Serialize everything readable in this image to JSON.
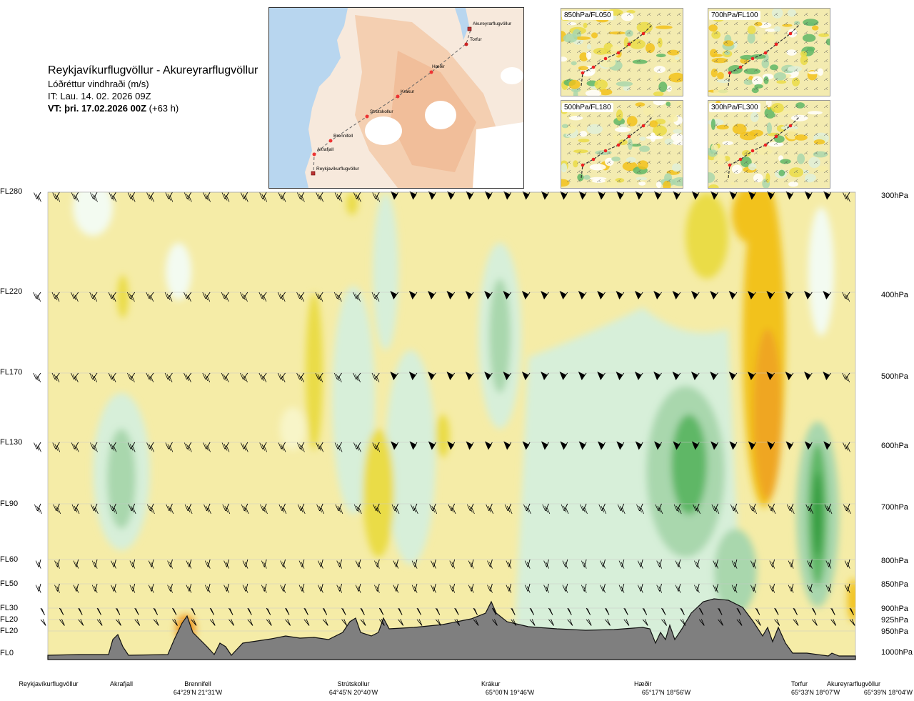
{
  "header": {
    "title": "Reykjavíkurflugvöllur - Akureyrarflugvöllur",
    "subtitle": "Lóðréttur vindhraði (m/s)",
    "issue_time": "IT: Lau. 14. 02. 2026 09Z",
    "valid_time": "VT: þri. 17.02.2026 00Z",
    "lead_time": "(+63 h)"
  },
  "route_map": {
    "waypoints": [
      {
        "name": "Akureyrarflugvöllur"
      },
      {
        "name": "Torfur"
      },
      {
        "name": "Hæðir"
      },
      {
        "name": "Krákur"
      },
      {
        "name": "Strútskollur"
      },
      {
        "name": "Brennifell"
      },
      {
        "name": "Akrafjall"
      },
      {
        "name": "Reykjavíkurflugvöllur"
      }
    ]
  },
  "mini_maps": [
    {
      "label": "850hPa/FL050"
    },
    {
      "label": "700hPa/FL100"
    },
    {
      "label": "500hPa/FL180"
    },
    {
      "label": "300hPa/FL300"
    }
  ],
  "levels": [
    {
      "fl": "FL280",
      "hpa": "300hPa"
    },
    {
      "fl": "FL220",
      "hpa": "400hPa"
    },
    {
      "fl": "FL170",
      "hpa": "500hPa"
    },
    {
      "fl": "FL130",
      "hpa": "600hPa"
    },
    {
      "fl": "FL90",
      "hpa": "700hPa"
    },
    {
      "fl": "FL60",
      "hpa": "800hPa"
    },
    {
      "fl": "FL50",
      "hpa": "850hPa"
    },
    {
      "fl": "FL30",
      "hpa": "900hPa"
    },
    {
      "fl": "FL20",
      "hpa": "925hPa"
    },
    {
      "fl": "FL20",
      "hpa": "950hPa"
    },
    {
      "fl": "FL0",
      "hpa": "1000hPa"
    }
  ],
  "locations": [
    {
      "name": "Reykjavíkurflugvöllur",
      "coord": ""
    },
    {
      "name": "Akrafjall",
      "coord": ""
    },
    {
      "name": "Brennifell",
      "coord": "64°29'N 21°31'W"
    },
    {
      "name": "Strútskollur",
      "coord": "64°45'N 20°40'W"
    },
    {
      "name": "Krákur",
      "coord": "65°00'N 19°46'W"
    },
    {
      "name": "Hæðir",
      "coord": "65°17'N 18°56'W"
    },
    {
      "name": "Torfur",
      "coord": "65°33'N 18°07'W"
    },
    {
      "name": "Akureyrarflugvöllur",
      "coord": "65°39'N 18°04'W"
    }
  ],
  "chart_data": {
    "type": "heatmap",
    "title": "Lóðréttur vindhraði (m/s)",
    "x_axis": [
      "Reykjavíkurflugvöllur",
      "Akrafjall",
      "Brennifell",
      "Strútskollur",
      "Krákur",
      "Hæðir",
      "Torfur",
      "Akureyrarflugvöllur"
    ],
    "y_axis_left": [
      "FL280",
      "FL220",
      "FL170",
      "FL130",
      "FL90",
      "FL60",
      "FL50",
      "FL30",
      "FL20",
      "FL20",
      "FL0"
    ],
    "y_axis_right": [
      "300hPa",
      "400hPa",
      "500hPa",
      "600hPa",
      "700hPa",
      "800hPa",
      "850hPa",
      "900hPa",
      "925hPa",
      "950hPa",
      "1000hPa"
    ],
    "colors": {
      "background": "#f5eca7",
      "light_green": "#d7efd9",
      "mid_green": "#a9d7ad",
      "dark_green": "#5fb766",
      "very_dark_green": "#2e9a3a",
      "pale": "#f3fbf1",
      "light_yellow": "#f8f5c8",
      "yellow": "#eadc46",
      "orange_yellow": "#f2c21b",
      "orange": "#ee9a22",
      "terrain": "#7f7f7f"
    },
    "grid": true
  }
}
